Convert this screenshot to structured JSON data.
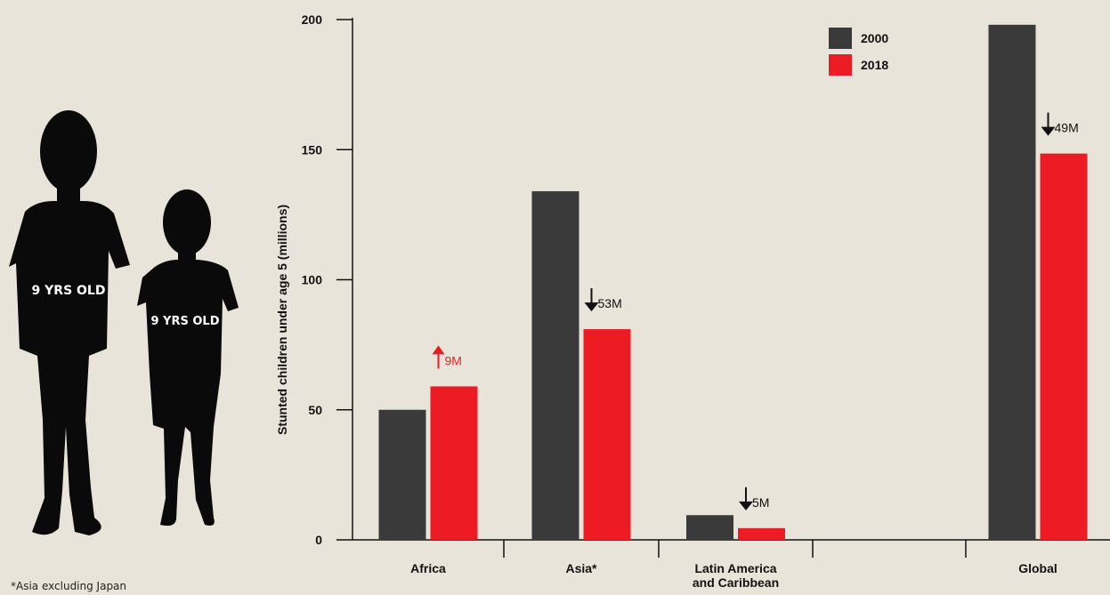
{
  "figures": {
    "tall_label": "9 YRS OLD",
    "short_label": "9 YRS OLD"
  },
  "footnote": "*Asia excluding Japan",
  "colors": {
    "background": "#e9e4da",
    "series_2000": "#3a3a3a",
    "series_2018": "#ed1c24",
    "silhouette": "#0a0a0a"
  },
  "chart_data": {
    "type": "bar",
    "categories": [
      "Africa",
      "Asia*",
      "Latin America\nand Caribbean",
      "",
      "Global"
    ],
    "series": [
      {
        "name": "2000",
        "values": [
          50,
          134,
          9.5,
          null,
          198
        ]
      },
      {
        "name": "2018",
        "values": [
          59,
          81,
          4.5,
          null,
          148.5
        ]
      }
    ],
    "annotations": [
      {
        "category": "Africa",
        "text": "9M",
        "direction": "up"
      },
      {
        "category": "Asia*",
        "text": "53M",
        "direction": "down"
      },
      {
        "category": "Latin America\nand Caribbean",
        "text": "5M",
        "direction": "down"
      },
      {
        "category": "Global",
        "text": "49M",
        "direction": "down"
      }
    ],
    "xlabel": "",
    "ylabel": "Stunted children under age 5 (millions)",
    "ylim": [
      0,
      200
    ],
    "yticks": [
      0,
      50,
      100,
      150,
      200
    ],
    "legend_position": "top-right",
    "grid": false
  }
}
